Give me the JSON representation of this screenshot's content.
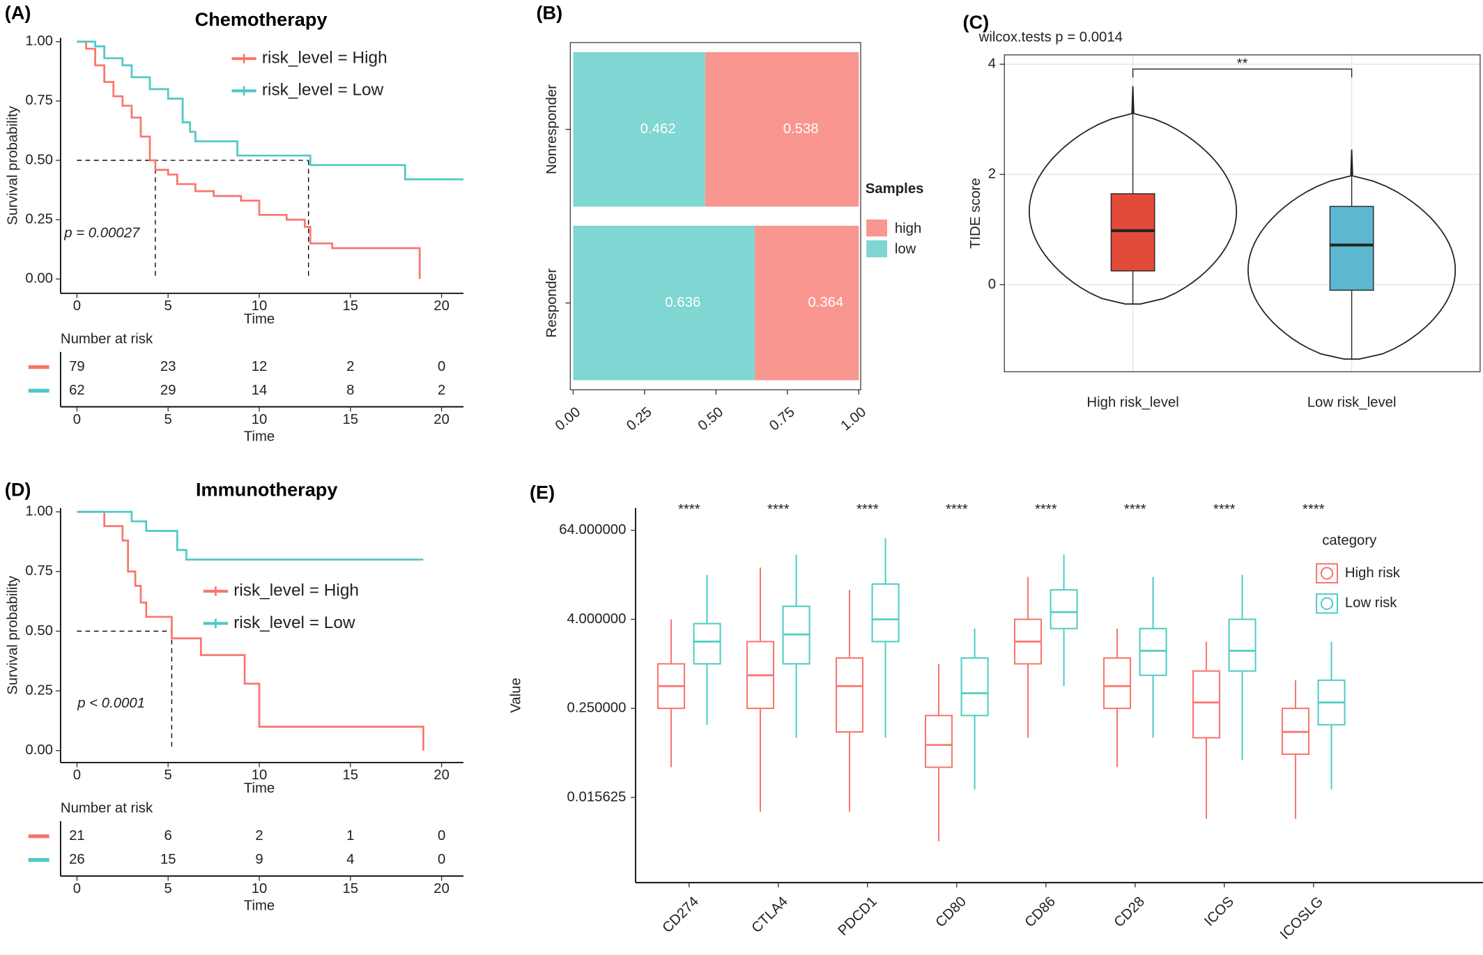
{
  "chart_data": [
    {
      "type": "km",
      "panel": "(A)",
      "title": "Chemotherapy",
      "xlabel": "Time",
      "ylabel": "Survival probability",
      "xlim": [
        -0.9,
        21.2
      ],
      "xticks": [
        0,
        5,
        10,
        15,
        20
      ],
      "ylim": [
        -0.06,
        1.016
      ],
      "yticks": [
        {
          "value": 0,
          "label": "0.00"
        },
        {
          "value": 0.25,
          "label": "0.25"
        },
        {
          "value": 0.5,
          "label": "0.50"
        },
        {
          "value": 0.75,
          "label": "0.75"
        },
        {
          "value": 1,
          "label": "1.00"
        }
      ],
      "series": [
        {
          "name": "risk_level = High",
          "color": "#f8766d",
          "x": [
            0,
            0.5,
            1,
            1.5,
            2,
            2.5,
            3,
            3.5,
            4,
            4.3,
            5,
            5.5,
            6.5,
            7.5,
            9,
            10,
            11.5,
            12.5,
            12.8,
            14,
            18.5,
            18.8
          ],
          "values": [
            1,
            0.97,
            0.9,
            0.83,
            0.77,
            0.73,
            0.68,
            0.6,
            0.5,
            0.46,
            0.44,
            0.4,
            0.37,
            0.35,
            0.33,
            0.27,
            0.25,
            0.22,
            0.15,
            0.13,
            0.13,
            0
          ]
        },
        {
          "name": "risk_level = Low",
          "color": "#4ec9c6",
          "x": [
            0,
            1,
            1.5,
            2.5,
            3,
            4,
            5,
            5.8,
            6.2,
            6.5,
            8.8,
            12.8,
            18,
            21.2
          ],
          "values": [
            1,
            0.98,
            0.93,
            0.9,
            0.85,
            0.8,
            0.76,
            0.66,
            0.62,
            0.58,
            0.52,
            0.48,
            0.42,
            0.42
          ]
        }
      ],
      "median_survival": [
        4.3,
        12.7
      ],
      "annotation": "p = 0.00027",
      "risk_table": {
        "title": "Number at risk",
        "rows": [
          [
            79,
            23,
            12,
            2,
            0
          ],
          [
            62,
            29,
            14,
            8,
            2
          ]
        ]
      }
    },
    {
      "type": "stacked_hbar",
      "panel": "(B)",
      "categories": [
        "Nonresponder",
        "Responder"
      ],
      "series": [
        {
          "name": "high",
          "color": "#f8968f",
          "values": [
            0.538,
            0.364
          ]
        },
        {
          "name": "low",
          "color": "#7fd6d3",
          "values": [
            0.462,
            0.636
          ]
        }
      ],
      "legend_title": "Samples",
      "xlim": [
        0,
        1
      ],
      "xticks": [
        {
          "value": 0,
          "label": "0.00"
        },
        {
          "value": 0.25,
          "label": "0.25"
        },
        {
          "value": 0.5,
          "label": "0.50"
        },
        {
          "value": 0.75,
          "label": "0.75"
        },
        {
          "value": 1,
          "label": "1.00"
        }
      ]
    },
    {
      "type": "violin",
      "panel": "(C)",
      "title": "wilcox.tests p = 0.0014",
      "ylabel": "TIDE score",
      "categories": [
        "High risk_level",
        "Low risk_level"
      ],
      "colors": [
        "#e24b3a",
        "#5bb8d0"
      ],
      "box": [
        {
          "min": -0.35,
          "q1": 0.25,
          "median": 0.98,
          "q3": 1.65,
          "max": 3.6
        },
        {
          "min": -1.35,
          "q1": -0.1,
          "median": 0.72,
          "q3": 1.42,
          "max": 2.45
        }
      ],
      "ylim": [
        -1.58,
        4.17
      ],
      "yticks": [
        0,
        2,
        4
      ],
      "grid": true,
      "annotation": "**"
    },
    {
      "type": "km",
      "panel": "(D)",
      "title": "Immunotherapy",
      "xlabel": "Time",
      "ylabel": "Survival probability",
      "xlim": [
        -0.9,
        21.2
      ],
      "xticks": [
        0,
        5,
        10,
        15,
        20
      ],
      "ylim": [
        -0.05,
        1.016
      ],
      "yticks": [
        {
          "value": 0,
          "label": "0.00"
        },
        {
          "value": 0.25,
          "label": "0.25"
        },
        {
          "value": 0.5,
          "label": "0.50"
        },
        {
          "value": 0.75,
          "label": "0.75"
        },
        {
          "value": 1,
          "label": "1.00"
        }
      ],
      "series": [
        {
          "name": "risk_level = High",
          "color": "#f8766d",
          "x": [
            0,
            1.5,
            2.5,
            2.8,
            3.2,
            3.5,
            3.8,
            5.2,
            6.8,
            9.2,
            10,
            19,
            19
          ],
          "values": [
            1,
            0.94,
            0.88,
            0.75,
            0.69,
            0.62,
            0.56,
            0.47,
            0.4,
            0.28,
            0.1,
            0.1,
            0
          ]
        },
        {
          "name": "risk_level = Low",
          "color": "#4ec9c6",
          "x": [
            0,
            3,
            3.8,
            5.5,
            6,
            19
          ],
          "values": [
            1,
            0.96,
            0.92,
            0.84,
            0.8,
            0.8
          ]
        }
      ],
      "median_survival": [
        5.2
      ],
      "annotation": "p < 0.0001",
      "risk_table": {
        "title": "Number at risk",
        "rows": [
          [
            21,
            6,
            2,
            1,
            0
          ],
          [
            26,
            15,
            9,
            4,
            0
          ]
        ]
      }
    },
    {
      "type": "grouped_box",
      "panel": "(E)",
      "ylabel": "Value",
      "legend_title": "category",
      "log_scale": true,
      "categories": [
        "CD274",
        "CTLA4",
        "PDCD1",
        "CD80",
        "CD86",
        "CD28",
        "ICOS",
        "ICOSLG"
      ],
      "significance": [
        "****",
        "****",
        "****",
        "****",
        "****",
        "****",
        "****",
        "****"
      ],
      "ylim": [
        0.0011,
        128
      ],
      "yticks": [
        {
          "value": 0.015625,
          "label": "0.015625"
        },
        {
          "value": 0.25,
          "label": "0.250000"
        },
        {
          "value": 4,
          "label": "4.000000"
        },
        {
          "value": 64,
          "label": "64.000000"
        }
      ],
      "series": [
        {
          "name": "High risk",
          "color": "#f8766d",
          "box": [
            {
              "min": 0.04,
              "q1": 0.25,
              "median": 0.5,
              "q3": 1.0,
              "max": 4
            },
            {
              "min": 0.01,
              "q1": 0.25,
              "median": 0.7,
              "q3": 2,
              "max": 20
            },
            {
              "min": 0.01,
              "q1": 0.12,
              "median": 0.5,
              "q3": 1.2,
              "max": 10
            },
            {
              "min": 0.004,
              "q1": 0.04,
              "median": 0.08,
              "q3": 0.2,
              "max": 1
            },
            {
              "min": 0.1,
              "q1": 1,
              "median": 2,
              "q3": 4,
              "max": 15
            },
            {
              "min": 0.04,
              "q1": 0.25,
              "median": 0.5,
              "q3": 1.2,
              "max": 3
            },
            {
              "min": 0.008,
              "q1": 0.1,
              "median": 0.3,
              "q3": 0.8,
              "max": 2
            },
            {
              "min": 0.008,
              "q1": 0.06,
              "median": 0.12,
              "q3": 0.25,
              "max": 0.6
            }
          ]
        },
        {
          "name": "Low risk",
          "color": "#4ecdc4",
          "box": [
            {
              "min": 0.15,
              "q1": 1,
              "median": 2,
              "q3": 3.5,
              "max": 16
            },
            {
              "min": 0.1,
              "q1": 1,
              "median": 2.5,
              "q3": 6,
              "max": 30
            },
            {
              "min": 0.1,
              "q1": 2,
              "median": 4,
              "q3": 12,
              "max": 50
            },
            {
              "min": 0.02,
              "q1": 0.2,
              "median": 0.4,
              "q3": 1.2,
              "max": 3
            },
            {
              "min": 0.5,
              "q1": 3,
              "median": 5,
              "q3": 10,
              "max": 30
            },
            {
              "min": 0.1,
              "q1": 0.7,
              "median": 1.5,
              "q3": 3,
              "max": 15
            },
            {
              "min": 0.05,
              "q1": 0.8,
              "median": 1.5,
              "q3": 4,
              "max": 16
            },
            {
              "min": 0.02,
              "q1": 0.15,
              "median": 0.3,
              "q3": 0.6,
              "max": 2
            }
          ]
        }
      ]
    }
  ]
}
